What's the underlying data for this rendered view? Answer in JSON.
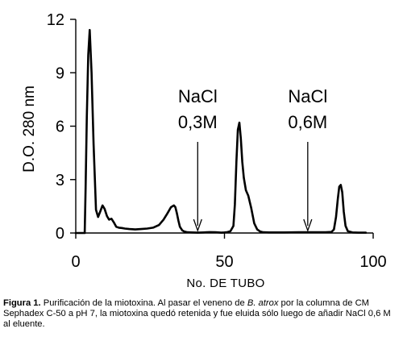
{
  "chart_data": {
    "type": "line",
    "xlabel": "No. DE TUBO",
    "ylabel": "D.O. 280 nm",
    "xlim": [
      0,
      100
    ],
    "ylim": [
      0,
      12
    ],
    "xticks": [
      0,
      50,
      100
    ],
    "yticks": [
      0,
      3,
      6,
      9,
      12
    ],
    "xtick_labels": [
      "0",
      "50",
      "100"
    ],
    "ytick_labels": [
      "0",
      "3",
      "6",
      "9",
      "12"
    ],
    "grid": false,
    "series": [
      {
        "color": "#000000",
        "x": [
          0,
          1,
          2,
          3,
          3.3,
          3.7,
          4.2,
          4.7,
          5.3,
          6,
          6.8,
          7.5,
          8.2,
          9,
          9.7,
          10.5,
          11.2,
          12,
          12.8,
          13.6,
          14.5,
          15.5,
          16.5,
          18,
          20,
          22,
          24,
          26,
          28,
          29.5,
          30.8,
          32,
          33,
          33.5,
          34,
          34.5,
          35,
          35.8,
          36.5,
          37.5,
          39,
          41,
          43,
          45,
          47,
          49,
          50,
          51,
          52,
          53,
          53.5,
          54,
          54.5,
          55,
          55.5,
          56,
          56.5,
          57.2,
          58,
          59,
          60,
          61,
          62,
          63,
          65,
          70,
          75,
          80,
          84,
          86,
          86.8,
          87.5,
          88.1,
          88.6,
          89.1,
          89.6,
          90.1,
          90.7,
          91.5,
          93,
          95,
          97.5
        ],
        "y": [
          0,
          0,
          0,
          0,
          2.5,
          6.5,
          10,
          11.4,
          9,
          5,
          1.3,
          0.9,
          1.2,
          1.55,
          1.35,
          0.95,
          0.75,
          0.8,
          0.6,
          0.35,
          0.3,
          0.28,
          0.25,
          0.22,
          0.2,
          0.22,
          0.25,
          0.3,
          0.45,
          0.75,
          1.1,
          1.45,
          1.55,
          1.45,
          1.1,
          0.7,
          0.35,
          0.15,
          0.08,
          0.04,
          0.03,
          0.02,
          0.03,
          0.05,
          0.04,
          0.02,
          0.03,
          0.05,
          0.1,
          0.4,
          1.6,
          4,
          5.8,
          6.2,
          5.3,
          4,
          3.1,
          2.4,
          2.1,
          1.4,
          0.55,
          0.2,
          0.08,
          0.04,
          0.03,
          0.03,
          0.04,
          0.04,
          0.04,
          0.06,
          0.2,
          0.9,
          1.9,
          2.6,
          2.7,
          2.3,
          1.2,
          0.4,
          0.1,
          0.03,
          0.02,
          0.02
        ]
      }
    ],
    "annotations": [
      {
        "line1": "NaCl",
        "line2": "0,3M",
        "x": 41
      },
      {
        "line1": "NaCl",
        "line2": "0,6M",
        "x": 78
      }
    ]
  },
  "caption": {
    "label": "Figura 1.",
    "text_before_species": " Purificación de la miotoxina. Al pasar el veneno de ",
    "species": "B. atrox",
    "text_after_species": " por la columna de CM Sephadex C-50 a pH 7, la miotoxina quedó retenida y fue eluida sólo luego de añadir NaCl 0,6 M al eluente."
  }
}
